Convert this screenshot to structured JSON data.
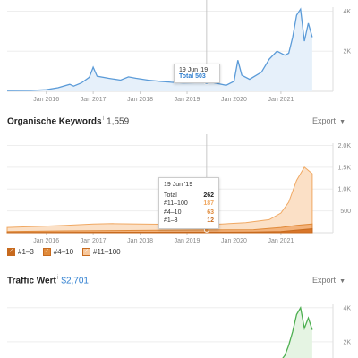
{
  "chart_data": [
    {
      "type": "line",
      "title": "",
      "y_ticks": [
        "4K",
        "2K"
      ],
      "x_ticks": [
        "Jan 2016",
        "Jan 2017",
        "Jan 2018",
        "Jan 2019",
        "Jan 2020",
        "Jan 2021"
      ],
      "ylim": [
        0,
        4200
      ],
      "series": [
        {
          "color": "#5b9bd8",
          "points": [
            [
              "2015-03",
              40
            ],
            [
              "2015-09",
              45
            ],
            [
              "2016-01",
              80
            ],
            [
              "2016-04",
              180
            ],
            [
              "2016-07",
              350
            ],
            [
              "2016-08",
              260
            ],
            [
              "2016-10",
              420
            ],
            [
              "2016-12",
              700
            ],
            [
              "2017-01",
              1200
            ],
            [
              "2017-02",
              750
            ],
            [
              "2017-05",
              650
            ],
            [
              "2017-08",
              560
            ],
            [
              "2017-10",
              720
            ],
            [
              "2017-12",
              650
            ],
            [
              "2018-03",
              560
            ],
            [
              "2018-06",
              500
            ],
            [
              "2018-09",
              450
            ],
            [
              "2018-12",
              420
            ],
            [
              "2019-03",
              430
            ],
            [
              "2019-06",
              503
            ],
            [
              "2019-09",
              380
            ],
            [
              "2019-11",
              300
            ],
            [
              "2020-01",
              500
            ],
            [
              "2020-02",
              1550
            ],
            [
              "2020-03",
              800
            ],
            [
              "2020-05",
              600
            ],
            [
              "2020-08",
              950
            ],
            [
              "2020-10",
              1600
            ],
            [
              "2020-12",
              2000
            ],
            [
              "2021-02",
              1800
            ],
            [
              "2021-03",
              1900
            ],
            [
              "2021-04",
              2700
            ],
            [
              "2021-05",
              3800
            ],
            [
              "2021-06",
              4100
            ],
            [
              "2021-07",
              2500
            ],
            [
              "2021-08",
              3400
            ],
            [
              "2021-09",
              2700
            ]
          ]
        }
      ],
      "tooltip": {
        "date": "19 Jun '19",
        "label": "Total 503"
      }
    },
    {
      "type": "area",
      "title": "Organische Keywords",
      "value": "1,559",
      "y_ticks": [
        "2.0K",
        "1.5K",
        "1.0K",
        "500"
      ],
      "x_ticks": [
        "Jan 2016",
        "Jan 2017",
        "Jan 2018",
        "Jan 2019",
        "Jan 2020",
        "Jan 2021"
      ],
      "ylim": [
        0,
        2050
      ],
      "series": [
        {
          "name": "#1–3",
          "color": "#c76a1e",
          "points": [
            [
              "2015-03",
              5
            ],
            [
              "2016-06",
              8
            ],
            [
              "2017-06",
              10
            ],
            [
              "2018-06",
              11
            ],
            [
              "2019-06",
              12
            ],
            [
              "2020-06",
              15
            ],
            [
              "2021-01",
              25
            ],
            [
              "2021-05",
              60
            ],
            [
              "2021-09",
              90
            ]
          ]
        },
        {
          "name": "#4–10",
          "color": "#e08a3a",
          "points": [
            [
              "2015-03",
              25
            ],
            [
              "2016-06",
              40
            ],
            [
              "2017-06",
              50
            ],
            [
              "2018-06",
              55
            ],
            [
              "2019-06",
              63
            ],
            [
              "2020-06",
              70
            ],
            [
              "2021-01",
              120
            ],
            [
              "2021-05",
              170
            ],
            [
              "2021-09",
              200
            ]
          ]
        },
        {
          "name": "#11–100",
          "color": "#f7c79b",
          "points": [
            [
              "2015-03",
              120
            ],
            [
              "2015-12",
              150
            ],
            [
              "2016-06",
              170
            ],
            [
              "2017-01",
              200
            ],
            [
              "2017-06",
              210
            ],
            [
              "2018-01",
              200
            ],
            [
              "2018-06",
              195
            ],
            [
              "2019-01",
              200
            ],
            [
              "2019-06",
              187
            ],
            [
              "2019-10",
              200
            ],
            [
              "2020-04",
              230
            ],
            [
              "2020-10",
              300
            ],
            [
              "2021-01",
              450
            ],
            [
              "2021-03",
              700
            ],
            [
              "2021-05",
              1200
            ],
            [
              "2021-07",
              1500
            ],
            [
              "2021-09",
              1350
            ]
          ]
        }
      ],
      "tooltip": {
        "date": "19 Jun '19",
        "rows": [
          {
            "label": "Total",
            "value": "262"
          },
          {
            "label": "#11–100",
            "value": "187"
          },
          {
            "label": "#4–10",
            "value": "63"
          },
          {
            "label": "#1–3",
            "value": "12"
          }
        ]
      }
    },
    {
      "type": "line",
      "title": "Traffic Wert",
      "value": "$2,701",
      "y_ticks": [
        "4K",
        "2K"
      ],
      "ylim": [
        0,
        4200
      ],
      "series": [
        {
          "color": "#4caf50",
          "points": [
            [
              "2020-06",
              50
            ],
            [
              "2020-09",
              200
            ],
            [
              "2020-12",
              600
            ],
            [
              "2021-02",
              1200
            ],
            [
              "2021-03",
              1800
            ],
            [
              "2021-04",
              2600
            ],
            [
              "2021-05",
              3600
            ],
            [
              "2021-06",
              4000
            ],
            [
              "2021-07",
              2800
            ],
            [
              "2021-08",
              3400
            ],
            [
              "2021-09",
              2700
            ]
          ]
        }
      ]
    }
  ],
  "labels": {
    "export": "Export",
    "export_caret": "▼",
    "info": "i",
    "legend_check": "✓"
  },
  "legend": [
    {
      "label": "#1–3",
      "color": "#c76a1e"
    },
    {
      "label": "#4–10",
      "color": "#e08a3a"
    },
    {
      "label": "#11–100",
      "color": "#f7c79b"
    }
  ]
}
